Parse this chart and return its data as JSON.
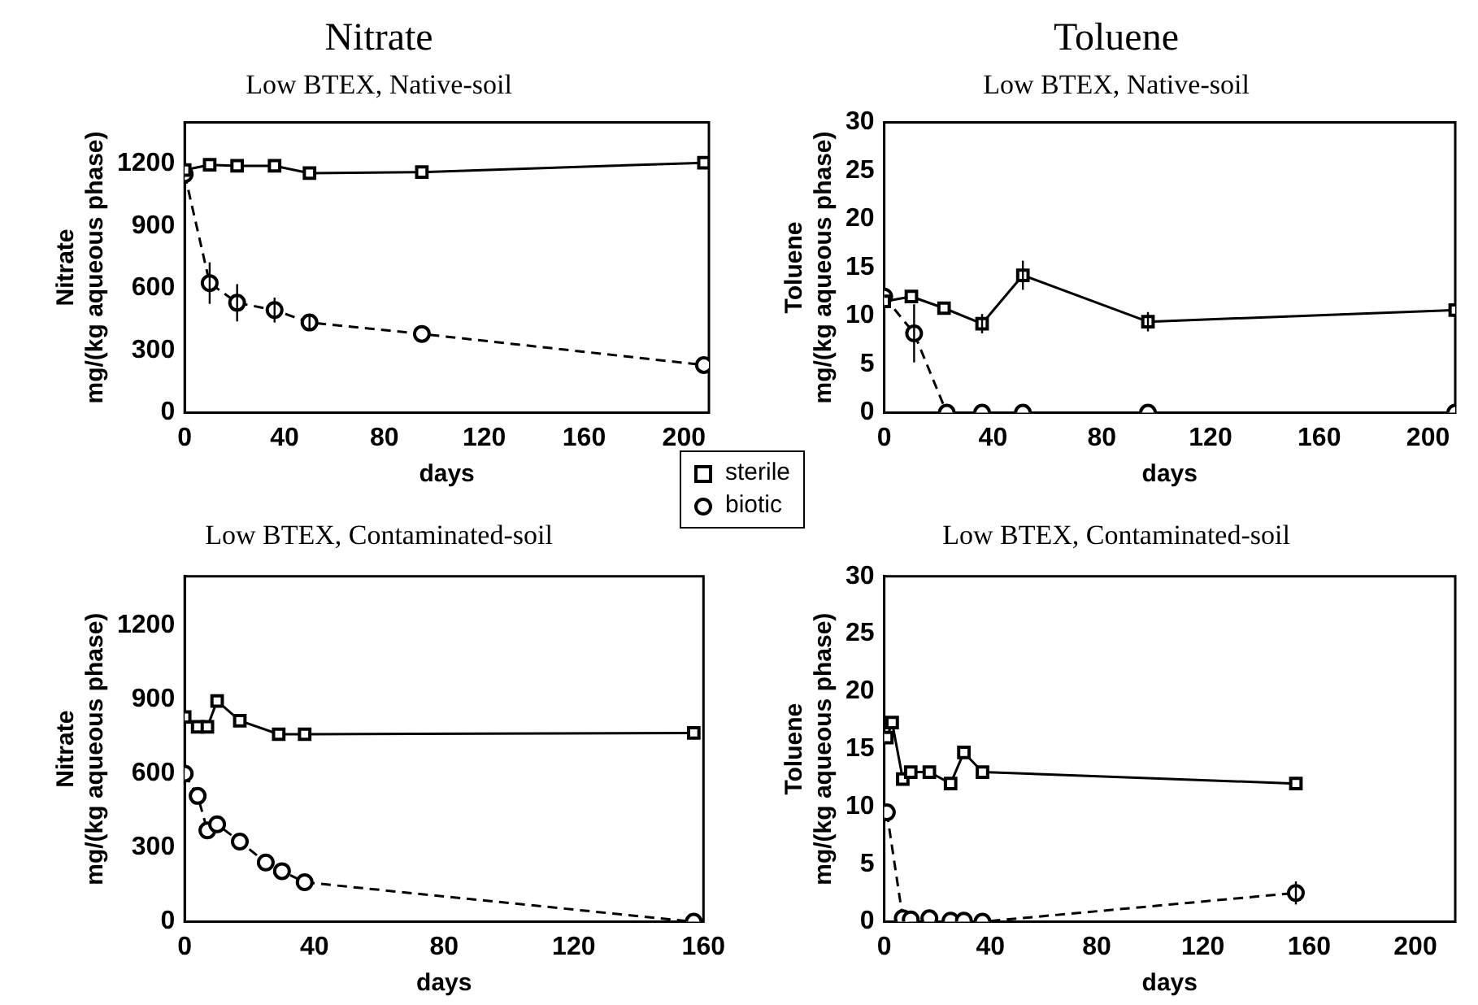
{
  "chart_data": [
    {
      "type": "line",
      "title": "Nitrate",
      "subtitle": "Low BTEX, Native-soil",
      "xlabel": "days",
      "ylabel": "Nitrate\nmg/(kg aqueous phase)",
      "xlim": [
        0,
        210
      ],
      "xticks": [
        0,
        40,
        80,
        120,
        160,
        200
      ],
      "ylim": [
        0,
        1400
      ],
      "yticks": [
        0,
        300,
        600,
        900,
        1200
      ],
      "grid": false,
      "legend": "bottom right",
      "series": [
        {
          "name": "sterile",
          "color": "#000000",
          "marker": "square",
          "line_style": "solid",
          "x": [
            0,
            10,
            21,
            36,
            50,
            95,
            208
          ],
          "values": [
            1170,
            1195,
            1190,
            1190,
            1155,
            1160,
            1205
          ]
        },
        {
          "name": "biotic",
          "color": "#000000",
          "marker": "circle",
          "line_style": "dashed",
          "x": [
            0,
            10,
            21,
            36,
            50,
            95,
            208
          ],
          "values": [
            1150,
            625,
            530,
            495,
            435,
            380,
            230
          ],
          "errors": [
            null,
            100,
            90,
            60,
            30,
            null,
            null
          ]
        }
      ]
    },
    {
      "type": "line",
      "title": "Toluene",
      "subtitle": "Low BTEX, Native-soil",
      "xlabel": "days",
      "ylabel": "Toluene\nmg/(kg aqueous phase)",
      "xlim": [
        0,
        210
      ],
      "xticks": [
        0,
        40,
        80,
        120,
        160,
        200
      ],
      "ylim": [
        0,
        30
      ],
      "yticks": [
        0,
        5,
        10,
        15,
        20,
        25,
        30
      ],
      "grid": false,
      "series": [
        {
          "color": "#000000",
          "marker": "square",
          "line_style": "solid",
          "x": [
            0,
            10,
            22,
            36,
            51,
            97,
            210
          ],
          "values": [
            11.5,
            12,
            10.8,
            9.2,
            14.2,
            9.4,
            10.6
          ],
          "errors": [
            null,
            null,
            null,
            1,
            1.5,
            1,
            null
          ]
        },
        {
          "color": "#000000",
          "marker": "circle",
          "line_style": "dashed",
          "x": [
            0,
            11,
            23,
            36,
            51,
            97,
            210
          ],
          "values": [
            12,
            8.2,
            0,
            0,
            0,
            0,
            0
          ],
          "errors": [
            null,
            3,
            null,
            null,
            null,
            null,
            null
          ]
        }
      ]
    },
    {
      "type": "line",
      "title": "Low BTEX, Contaminated-soil",
      "xlabel": "days",
      "ylabel": "Nitrate\nmg/(kg aqueous phase)",
      "xlim": [
        0,
        160
      ],
      "xticks": [
        0,
        40,
        80,
        120,
        160
      ],
      "ylim": [
        0,
        1400
      ],
      "yticks": [
        0,
        300,
        600,
        900,
        1200
      ],
      "grid": false,
      "series": [
        {
          "color": "#000000",
          "marker": "square",
          "line_style": "solid",
          "x": [
            0,
            4,
            7,
            10,
            17,
            29,
            37,
            157
          ],
          "values": [
            830,
            790,
            790,
            895,
            815,
            760,
            760,
            765
          ]
        },
        {
          "color": "#000000",
          "marker": "circle",
          "line_style": "dashed",
          "x": [
            0,
            4,
            7,
            10,
            17,
            25,
            30,
            37,
            157
          ],
          "values": [
            600,
            510,
            370,
            395,
            325,
            240,
            205,
            160,
            0
          ]
        }
      ]
    },
    {
      "type": "line",
      "title": "Low BTEX, Contaminated-soil",
      "xlabel": "days",
      "ylabel": "Toluene\nmg/(kg aqueous phase)",
      "xlim": [
        0,
        215
      ],
      "xticks": [
        0,
        40,
        80,
        120,
        160,
        200
      ],
      "ylim": [
        0,
        30
      ],
      "yticks": [
        0,
        5,
        10,
        15,
        20,
        25,
        30
      ],
      "grid": false,
      "series": [
        {
          "color": "#000000",
          "marker": "square",
          "line_style": "solid",
          "x": [
            1,
            3,
            7,
            10,
            17,
            25,
            30,
            37,
            155
          ],
          "values": [
            16,
            17.3,
            12.4,
            13,
            13,
            12,
            14.7,
            13,
            12
          ]
        },
        {
          "color": "#000000",
          "marker": "circle",
          "line_style": "dashed",
          "x": [
            1,
            7,
            10,
            17,
            25,
            30,
            37,
            155
          ],
          "values": [
            9.5,
            0.3,
            0.2,
            0.3,
            0.1,
            0.1,
            0,
            2.5
          ],
          "errors": [
            null,
            null,
            null,
            null,
            null,
            null,
            null,
            1
          ]
        }
      ]
    }
  ]
}
